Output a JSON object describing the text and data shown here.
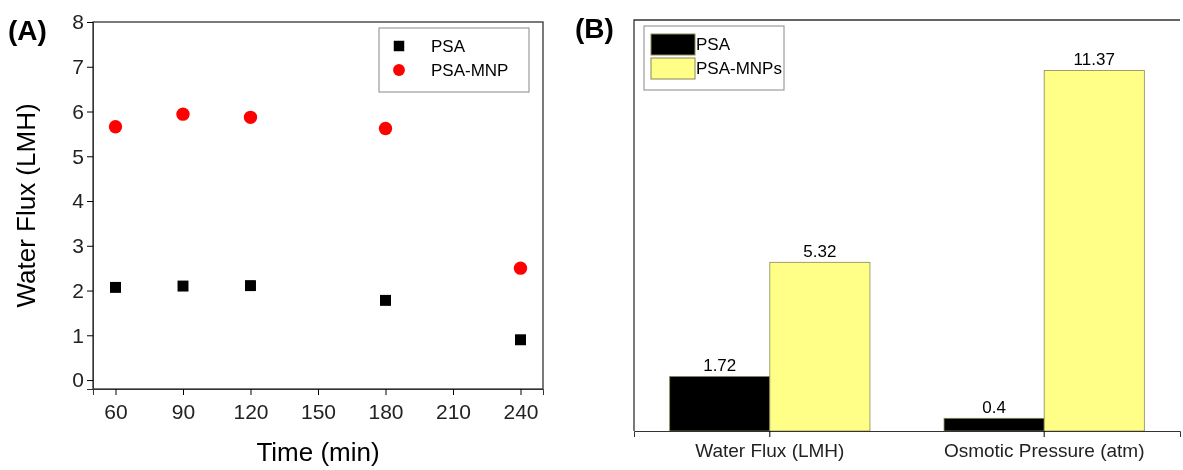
{
  "chart_data": [
    {
      "type": "scatter",
      "title": "(A)",
      "xlabel": "Time (min)",
      "ylabel": "Water Flux (LMH)",
      "xlim": [
        50,
        250
      ],
      "xticks": [
        60,
        90,
        120,
        150,
        180,
        210,
        240
      ],
      "ylim": [
        -0.2,
        8
      ],
      "yticks": [
        0,
        1,
        2,
        3,
        4,
        5,
        6,
        7,
        8
      ],
      "legend": "top right",
      "grid": false,
      "series": [
        {
          "name": "PSA",
          "color": "#000000",
          "marker": "square",
          "x": [
            60,
            90,
            120,
            180,
            240
          ],
          "values": [
            2.07,
            2.1,
            2.11,
            1.78,
            0.9
          ]
        },
        {
          "name": "PSA-MNP",
          "color": "#ff0000",
          "marker": "circle",
          "x": [
            60,
            90,
            120,
            180,
            240
          ],
          "values": [
            5.66,
            5.94,
            5.87,
            5.62,
            2.5
          ]
        }
      ]
    },
    {
      "type": "bar",
      "title": "(B)",
      "categories": [
        "Water Flux (LMH)",
        "Osmotic Pressure (atm)"
      ],
      "legend": "top left",
      "data_labels": true,
      "tick_labels": "x",
      "series": [
        {
          "name": "PSA",
          "color": "#000000",
          "values": [
            1.72,
            0.4
          ]
        },
        {
          "name": "PSA-MNPs",
          "color": "#ffff88",
          "values": [
            5.32,
            11.37
          ]
        }
      ]
    }
  ]
}
